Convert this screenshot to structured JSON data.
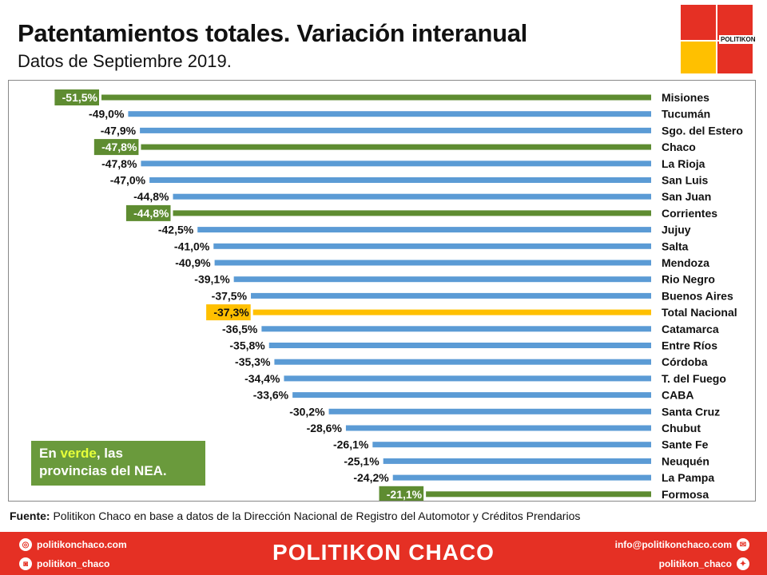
{
  "header": {
    "title": "Patentamientos totales. Variación interanual",
    "subtitle": "Datos de Septiembre 2019.",
    "logo_text": "POLITIKON"
  },
  "note": {
    "prefix": "En ",
    "highlight": "verde",
    "suffix_line1": ", las",
    "line2": "provincias del NEA."
  },
  "source": {
    "label": "Fuente:",
    "text": " Politikon Chaco en base a datos de la Dirección Nacional de Registro del Automotor y Créditos Prendarios"
  },
  "footer": {
    "website": "politikonchaco.com",
    "instagram": "politikon_chaco",
    "email": "info@politikonchaco.com",
    "twitter": "politikon_chaco",
    "brand": "POLITIKON CHACO",
    "icons": [
      "globe-icon",
      "instagram-icon",
      "mail-icon",
      "twitter-icon"
    ]
  },
  "colors": {
    "nea": "#5e8c31",
    "other": "#5b9bd5",
    "total": "#ffc000",
    "logo_red": "#e53024",
    "logo_yellow": "#ffc000"
  },
  "chart_data": {
    "type": "bar",
    "orientation": "horizontal",
    "unit": "%",
    "xlim": [
      -51.5,
      0
    ],
    "categories": [
      "Misiones",
      "Tucumán",
      "Sgo. del Estero",
      "Chaco",
      "La Rioja",
      "San Luis",
      "San Juan",
      "Corrientes",
      "Jujuy",
      "Salta",
      "Mendoza",
      "Rio Negro",
      "Buenos Aires",
      "Total Nacional",
      "Catamarca",
      "Entre Ríos",
      "Córdoba",
      "T. del Fuego",
      "CABA",
      "Santa Cruz",
      "Chubut",
      "Sante Fe",
      "Neuquén",
      "La Pampa",
      "Formosa"
    ],
    "values": [
      -51.5,
      -49.0,
      -47.9,
      -47.8,
      -47.8,
      -47.0,
      -44.8,
      -44.8,
      -42.5,
      -41.0,
      -40.9,
      -39.1,
      -37.5,
      -37.3,
      -36.5,
      -35.8,
      -35.3,
      -34.4,
      -33.6,
      -30.2,
      -28.6,
      -26.1,
      -25.1,
      -24.2,
      -21.1
    ],
    "labels": [
      "-51,5%",
      "-49,0%",
      "-47,9%",
      "-47,8%",
      "-47,8%",
      "-47,0%",
      "-44,8%",
      "-44,8%",
      "-42,5%",
      "-41,0%",
      "-40,9%",
      "-39,1%",
      "-37,5%",
      "-37,3%",
      "-36,5%",
      "-35,8%",
      "-35,3%",
      "-34,4%",
      "-33,6%",
      "-30,2%",
      "-28,6%",
      "-26,1%",
      "-25,1%",
      "-24,2%",
      "-21,1%"
    ],
    "groups": [
      "nea",
      "other",
      "other",
      "nea",
      "other",
      "other",
      "other",
      "nea",
      "other",
      "other",
      "other",
      "other",
      "other",
      "total",
      "other",
      "other",
      "other",
      "other",
      "other",
      "other",
      "other",
      "other",
      "other",
      "other",
      "nea"
    ]
  }
}
